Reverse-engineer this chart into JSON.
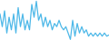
{
  "values": [
    55,
    35,
    60,
    25,
    50,
    30,
    55,
    25,
    65,
    35,
    55,
    30,
    45,
    30,
    70,
    50,
    75,
    45,
    55,
    35,
    50,
    35,
    45,
    30,
    40,
    35,
    45,
    35,
    30,
    35,
    25,
    15,
    45,
    20,
    40,
    25,
    35,
    25,
    30,
    20,
    25,
    20,
    25,
    20,
    25,
    20,
    25,
    20,
    22
  ],
  "line_color": "#4db8e8",
  "background_color": "#ffffff",
  "linewidth": 0.9
}
